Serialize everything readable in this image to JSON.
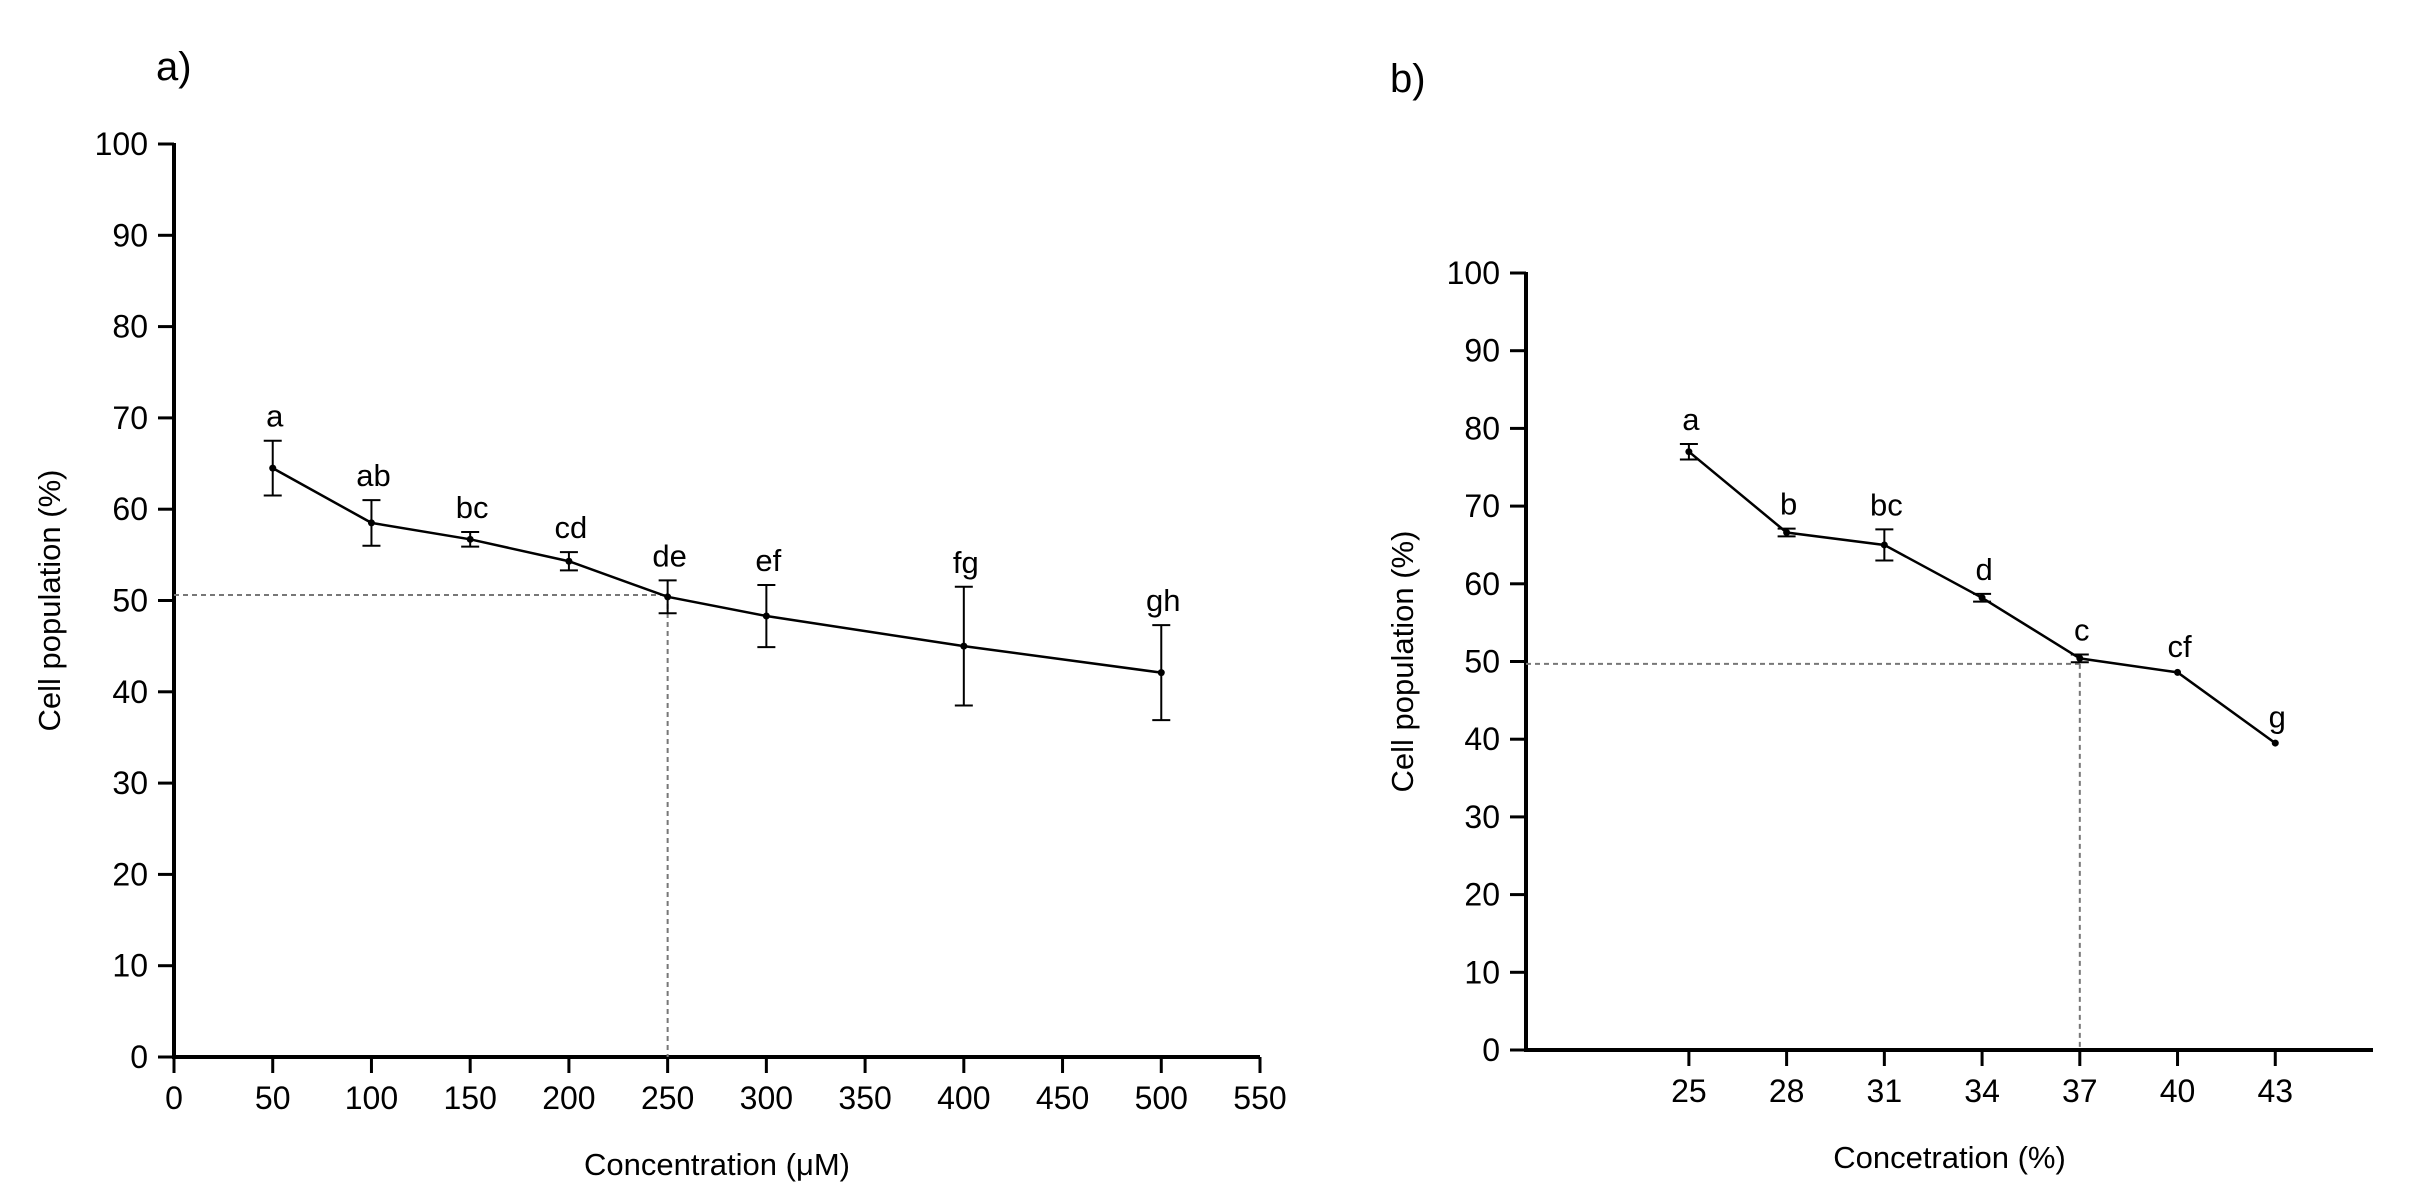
{
  "chart_data": [
    {
      "panel": "a)",
      "type": "line",
      "xlabel": "Concentration (μM)",
      "ylabel": "Cell population (%)",
      "xlim": [
        0,
        550
      ],
      "ylim": [
        0,
        100
      ],
      "xticks": [
        0,
        50,
        100,
        150,
        200,
        250,
        300,
        350,
        400,
        450,
        500,
        550
      ],
      "yticks": [
        0,
        10,
        20,
        30,
        40,
        50,
        60,
        70,
        80,
        90,
        100
      ],
      "x": [
        50,
        100,
        150,
        200,
        250,
        300,
        400,
        500
      ],
      "y": [
        64.5,
        58.5,
        56.7,
        54.3,
        50.4,
        48.3,
        45.0,
        42.1
      ],
      "error": [
        3.0,
        2.5,
        0.8,
        1.0,
        1.8,
        3.4,
        6.5,
        5.2
      ],
      "letters": [
        "a",
        "ab",
        "bc",
        "cd",
        "de",
        "ef",
        "fg",
        "gh"
      ],
      "reference": {
        "x": 250,
        "y": 50.6
      }
    },
    {
      "panel": "b)",
      "type": "line",
      "xlabel": "Concetration (%)",
      "ylabel": "Cell population (%)",
      "xlim": [
        20,
        46
      ],
      "ylim": [
        0,
        100
      ],
      "xticks": [
        25,
        28,
        31,
        34,
        37,
        40,
        43
      ],
      "yticks": [
        0,
        10,
        20,
        30,
        40,
        50,
        60,
        70,
        80,
        90,
        100
      ],
      "x": [
        25,
        28,
        31,
        34,
        37,
        40,
        43
      ],
      "y": [
        77.0,
        66.6,
        65.0,
        58.2,
        50.4,
        48.6,
        39.5
      ],
      "error": [
        1.0,
        0.5,
        2.0,
        0.5,
        0.5,
        0.2,
        0.2
      ],
      "letters": [
        "a",
        "b",
        "bc",
        "d",
        "c",
        "cf",
        "g"
      ],
      "reference": {
        "x": 37,
        "y": 49.7
      }
    }
  ]
}
